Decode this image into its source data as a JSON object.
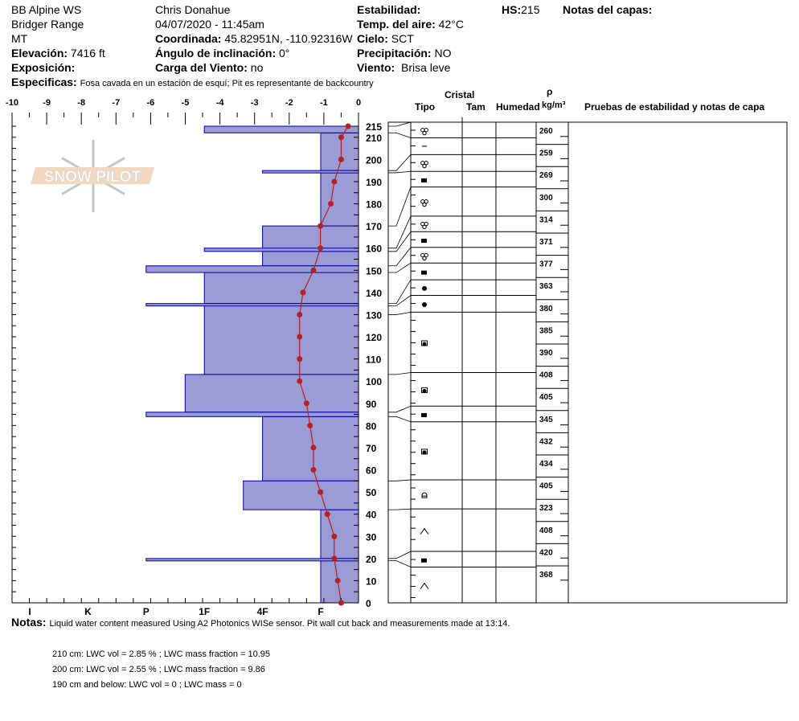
{
  "header": {
    "col1": [
      "BB Alpine WS",
      "Bridger Range",
      "MT"
    ],
    "elevation_label": "Elevación:",
    "elevation": "7416 ft",
    "aspect_label": "Exposición:",
    "observer": "Chris Donahue",
    "datetime": "04/07/2020 - 11:45am",
    "coord_label": "Coordinada:",
    "coord": "45.82951N, -110.92316W",
    "slope_label": "Ángulo de inclinación:",
    "slope": "0°",
    "wind_load_label": "Carga del Viento:",
    "wind_load": "no",
    "stability_label": "Estabilidad:",
    "air_temp_label": "Temp. del aire:",
    "air_temp": "42°C",
    "sky_label": "Cielo:",
    "sky": "SCT",
    "precip_label": "Precipitación:",
    "precip": "NO",
    "wind_label": "Viento:",
    "wind": "Brisa leve",
    "hs_label": "HS:",
    "hs": "215",
    "layer_notes_label": "Notas del capas:",
    "specifics_label": "Especificas:",
    "specifics": "Fosa cavada en un estación de esquí; Pit es representante de backcountry"
  },
  "logo": {
    "text": "SNOW PILOT"
  },
  "table_headers": {
    "crystal": "Cristal",
    "type": "Tipo",
    "size": "Tam",
    "moisture": "Humedad",
    "rho": "ρ",
    "density_unit": "kg/m³",
    "tests": "Pruebas de estabilidad y notas de capa"
  },
  "notes": {
    "label": "Notas:",
    "text": "Liquid water content measured Using A2 Photonics WISe sensor. Pit wall cut back and measurements made at 13:14.",
    "lines": [
      "210 cm:  LWC vol = 2.85 %   ;  LWC mass fraction = 10.95",
      "200 cm:  LWC vol = 2.55 %   ;  LWC mass fraction =   9.86",
      "190 cm and below: LWC vol = 0   ; LWC mass = 0"
    ]
  },
  "colors": {
    "hardness_fill": "#9b9bd6",
    "hardness_stroke": "#0000a0",
    "temp": "#b22222"
  },
  "chart_data": {
    "type": "snow-profile",
    "temperature_axis": {
      "ticks": [
        "-10",
        "-9",
        "-8",
        "-7",
        "-6",
        "-5",
        "-4",
        "-3",
        "-2",
        "-1",
        "0"
      ],
      "range": [
        -10,
        0
      ]
    },
    "depth_axis": {
      "range": [
        0,
        215
      ],
      "ticks": [
        "215",
        "210",
        "200",
        "190",
        "180",
        "170",
        "160",
        "150",
        "140",
        "130",
        "120",
        "110",
        "100",
        "90",
        "80",
        "70",
        "60",
        "50",
        "40",
        "30",
        "20",
        "10",
        "0"
      ]
    },
    "hardness_axis": {
      "ticks": [
        "I",
        "K",
        "P",
        "1F",
        "4F",
        "F"
      ]
    },
    "temperature_profile": [
      {
        "depth": 215,
        "temp": -0.3
      },
      {
        "depth": 210,
        "temp": -0.5
      },
      {
        "depth": 200,
        "temp": -0.5
      },
      {
        "depth": 190,
        "temp": -0.7
      },
      {
        "depth": 180,
        "temp": -0.8
      },
      {
        "depth": 170,
        "temp": -1.1
      },
      {
        "depth": 160,
        "temp": -1.1
      },
      {
        "depth": 150,
        "temp": -1.3
      },
      {
        "depth": 140,
        "temp": -1.6
      },
      {
        "depth": 130,
        "temp": -1.7
      },
      {
        "depth": 120,
        "temp": -1.7
      },
      {
        "depth": 110,
        "temp": -1.7
      },
      {
        "depth": 100,
        "temp": -1.7
      },
      {
        "depth": 90,
        "temp": -1.5
      },
      {
        "depth": 80,
        "temp": -1.4
      },
      {
        "depth": 70,
        "temp": -1.3
      },
      {
        "depth": 60,
        "temp": -1.3
      },
      {
        "depth": 50,
        "temp": -1.1
      },
      {
        "depth": 40,
        "temp": -0.9
      },
      {
        "depth": 30,
        "temp": -0.7
      },
      {
        "depth": 20,
        "temp": -0.7
      },
      {
        "depth": 10,
        "temp": -0.6
      },
      {
        "depth": 0,
        "temp": -0.5
      }
    ],
    "hardness_layers": [
      {
        "top": 215,
        "bottom": 212,
        "hardness": "1F",
        "index": 3
      },
      {
        "top": 212,
        "bottom": 195,
        "hardness": "F",
        "index": 1
      },
      {
        "top": 195,
        "bottom": 194,
        "hardness": "4F",
        "index": 2
      },
      {
        "top": 194,
        "bottom": 170,
        "hardness": "F",
        "index": 1
      },
      {
        "top": 170,
        "bottom": 152,
        "hardness": "4F",
        "index": 2
      },
      {
        "top": 160,
        "bottom": 158.5,
        "hardness": "1F",
        "index": 3
      },
      {
        "top": 152,
        "bottom": 149,
        "hardness": "P",
        "index": 4
      },
      {
        "top": 149,
        "bottom": 135,
        "hardness": "1F",
        "index": 3
      },
      {
        "top": 135,
        "bottom": 134,
        "hardness": "P",
        "index": 4
      },
      {
        "top": 134,
        "bottom": 103,
        "hardness": "1F",
        "index": 3
      },
      {
        "top": 103,
        "bottom": 86,
        "hardness": "1F+",
        "index": 3.33
      },
      {
        "top": 86,
        "bottom": 84,
        "hardness": "P",
        "index": 4
      },
      {
        "top": 84,
        "bottom": 55,
        "hardness": "4F",
        "index": 2
      },
      {
        "top": 55,
        "bottom": 42,
        "hardness": "4F+",
        "index": 2.33
      },
      {
        "top": 42,
        "bottom": 20,
        "hardness": "F",
        "index": 1
      },
      {
        "top": 20,
        "bottom": 19,
        "hardness": "P",
        "index": 4
      },
      {
        "top": 19,
        "bottom": 0,
        "hardness": "F",
        "index": 1
      }
    ],
    "crystal_rows": [
      {
        "top": 215,
        "bottom": 212,
        "grain": "mf-cluster",
        "map_top": 215,
        "map_bottom": 208
      },
      {
        "top": 212,
        "bottom": 195,
        "grain": "dash",
        "map_top": 208,
        "map_bottom": 200.5
      },
      {
        "top": 195,
        "bottom": 194,
        "grain": "mf",
        "map_top": 200.5,
        "map_bottom": 193
      },
      {
        "top": 194,
        "bottom": 170,
        "grain": "facet",
        "map_top": 193,
        "map_bottom": 186
      },
      {
        "top": 170,
        "bottom": 160,
        "grain": "mf",
        "map_top": 186,
        "map_bottom": 173
      },
      {
        "top": 160,
        "bottom": 158.5,
        "grain": "mf",
        "map_top": 173,
        "map_bottom": 166
      },
      {
        "top": 158.5,
        "bottom": 152,
        "grain": "facet",
        "map_top": 166,
        "map_bottom": 159
      },
      {
        "top": 152,
        "bottom": 149,
        "grain": "mf",
        "map_top": 159,
        "map_bottom": 152
      },
      {
        "top": 149,
        "bottom": 135,
        "grain": "facet",
        "map_top": 152,
        "map_bottom": 144.5
      },
      {
        "top": 135,
        "bottom": 134,
        "grain": "round",
        "map_top": 144.5,
        "map_bottom": 137.5
      },
      {
        "top": 134,
        "bottom": 130,
        "grain": "round",
        "map_top": 137.5,
        "map_bottom": 130
      },
      {
        "top": 130,
        "bottom": 103,
        "grain": "rounding-facet",
        "map_top": 130,
        "map_bottom": 103
      },
      {
        "top": 103,
        "bottom": 86,
        "grain": "rounding-facet",
        "map_top": 103,
        "map_bottom": 88
      },
      {
        "top": 86,
        "bottom": 84,
        "grain": "facet",
        "map_top": 88,
        "map_bottom": 81
      },
      {
        "top": 84,
        "bottom": 55,
        "grain": "rounding-facet",
        "map_top": 81,
        "map_bottom": 55
      },
      {
        "top": 55,
        "bottom": 42,
        "grain": "faceted-round",
        "map_top": 55,
        "map_bottom": 42
      },
      {
        "top": 42,
        "bottom": 20,
        "grain": "depth-hoar",
        "map_top": 42,
        "map_bottom": 23
      },
      {
        "top": 20,
        "bottom": 19,
        "grain": "facet",
        "map_top": 23,
        "map_bottom": 16
      },
      {
        "top": 19,
        "bottom": 0,
        "grain": "depth-hoar",
        "map_top": 16,
        "map_bottom": 0
      }
    ],
    "density": [
      "260",
      "259",
      "269",
      "300",
      "314",
      "371",
      "377",
      "363",
      "380",
      "385",
      "390",
      "408",
      "405",
      "345",
      "432",
      "434",
      "405",
      "323",
      "408",
      "420",
      "368"
    ]
  }
}
